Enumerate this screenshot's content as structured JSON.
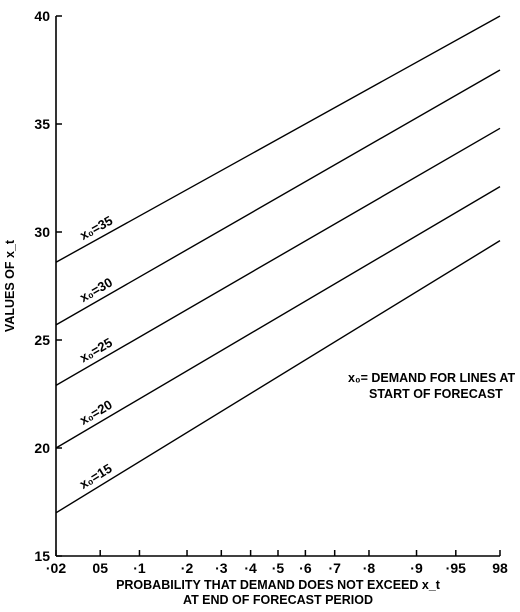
{
  "chart_data": {
    "type": "line",
    "title": "",
    "xlabel_lines": [
      "PROBABILITY THAT DEMAND DOES NOT EXCEED x_t",
      "AT END OF FORECAST PERIOD"
    ],
    "ylabel": "VALUES OF x_t",
    "x_scale": "probability (normal)",
    "x_ticks": [
      {
        "value": 0.02,
        "label": "·02"
      },
      {
        "value": 0.05,
        "label": "05"
      },
      {
        "value": 0.1,
        "label": "·1"
      },
      {
        "value": 0.2,
        "label": "·2"
      },
      {
        "value": 0.3,
        "label": "·3"
      },
      {
        "value": 0.4,
        "label": "·4"
      },
      {
        "value": 0.5,
        "label": "·5"
      },
      {
        "value": 0.6,
        "label": "·6"
      },
      {
        "value": 0.7,
        "label": "·7"
      },
      {
        "value": 0.8,
        "label": "·8"
      },
      {
        "value": 0.9,
        "label": "·9"
      },
      {
        "value": 0.95,
        "label": "·95"
      },
      {
        "value": 0.98,
        "label": "98"
      }
    ],
    "xlim": [
      0.02,
      0.98
    ],
    "ylim": [
      15,
      40
    ],
    "y_ticks": [
      15,
      20,
      25,
      30,
      35,
      40
    ],
    "grid": false,
    "series": [
      {
        "name": "x₀=35",
        "x": [
          0.02,
          0.98
        ],
        "y": [
          28.6,
          40.0
        ]
      },
      {
        "name": "x₀=30",
        "x": [
          0.02,
          0.98
        ],
        "y": [
          25.7,
          37.5
        ]
      },
      {
        "name": "x₀=25",
        "x": [
          0.02,
          0.98
        ],
        "y": [
          22.9,
          34.8
        ]
      },
      {
        "name": "x₀=20",
        "x": [
          0.02,
          0.98
        ],
        "y": [
          20.0,
          32.1
        ]
      },
      {
        "name": "x₀=15",
        "x": [
          0.02,
          0.98
        ],
        "y": [
          17.0,
          29.6
        ]
      }
    ],
    "annotation_lines": [
      "x₀= DEMAND FOR LINES AT",
      "START OF FORECAST"
    ]
  }
}
